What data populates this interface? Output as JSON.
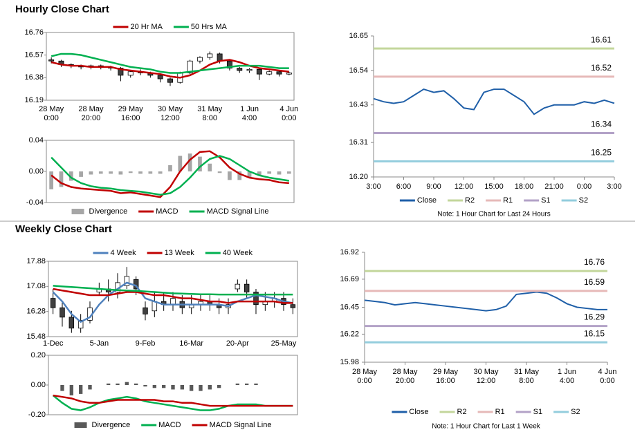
{
  "chart_data": [
    {
      "type": "candlestick",
      "title": "Hourly Close Chart",
      "categories": [
        "28 May 0:00",
        null,
        null,
        null,
        "28 May 20:00",
        null,
        null,
        null,
        "29 May 16:00",
        null,
        null,
        null,
        "30 May 12:00",
        null,
        null,
        null,
        "31 May 8:00",
        null,
        null,
        null,
        "1 Jun 4:00",
        null,
        null,
        null,
        "4 Jun 0:00"
      ],
      "open": [
        16.53,
        16.52,
        16.49,
        16.48,
        16.47,
        16.48,
        16.47,
        16.46,
        16.4,
        16.43,
        16.42,
        16.4,
        16.37,
        16.34,
        16.42,
        16.52,
        16.55,
        16.58,
        16.52,
        16.46,
        16.44,
        16.45,
        16.41,
        16.43,
        16.41
      ],
      "high": [
        16.55,
        16.53,
        16.5,
        16.49,
        16.49,
        16.49,
        16.48,
        16.47,
        16.44,
        16.45,
        16.43,
        16.41,
        16.38,
        16.43,
        16.53,
        16.56,
        16.6,
        16.59,
        16.53,
        16.47,
        16.46,
        16.46,
        16.44,
        16.44,
        16.43
      ],
      "low": [
        16.5,
        16.47,
        16.46,
        16.45,
        16.45,
        16.45,
        16.44,
        16.35,
        16.38,
        16.4,
        16.38,
        16.34,
        16.31,
        16.33,
        16.41,
        16.5,
        16.53,
        16.5,
        16.44,
        16.42,
        16.42,
        16.36,
        16.4,
        16.39,
        16.4
      ],
      "close": [
        16.52,
        16.49,
        16.48,
        16.47,
        16.48,
        16.47,
        16.46,
        16.4,
        16.43,
        16.42,
        16.4,
        16.37,
        16.34,
        16.42,
        16.52,
        16.55,
        16.58,
        16.52,
        16.46,
        16.44,
        16.45,
        16.41,
        16.43,
        16.41,
        16.42
      ],
      "candle_colors": {
        "up": "#ffffff",
        "down": "#404040",
        "edge": "#000000"
      },
      "series": [
        {
          "name": "20 Hr MA",
          "color": "#c00000",
          "values": [
            16.51,
            16.49,
            16.48,
            16.48,
            16.47,
            16.47,
            16.47,
            16.45,
            16.44,
            16.43,
            16.42,
            16.41,
            16.39,
            16.38,
            16.4,
            16.44,
            16.49,
            16.52,
            16.53,
            16.51,
            16.48,
            16.46,
            16.45,
            16.44,
            16.43
          ]
        },
        {
          "name": "50 Hrs MA",
          "color": "#00b050",
          "values": [
            16.56,
            16.58,
            16.58,
            16.57,
            16.55,
            16.53,
            16.51,
            16.49,
            16.47,
            16.46,
            16.45,
            16.43,
            16.42,
            16.42,
            16.43,
            16.44,
            16.45,
            16.46,
            16.47,
            16.48,
            16.48,
            16.48,
            16.47,
            16.46,
            16.46
          ]
        }
      ],
      "ylim": [
        16.19,
        16.76
      ],
      "yticks": [
        16.19,
        16.38,
        16.57,
        16.76
      ]
    },
    {
      "type": "macd",
      "series": [
        {
          "name": "Divergence",
          "kind": "bar",
          "color": "#a6a6a6",
          "values": [
            -0.023,
            -0.02,
            -0.012,
            -0.007,
            -0.004,
            -0.003,
            -0.003,
            -0.004,
            -0.002,
            -0.003,
            -0.003,
            -0.003,
            0.008,
            0.02,
            0.023,
            0.019,
            0.01,
            -0.002,
            -0.011,
            -0.011,
            -0.008,
            -0.005,
            -0.003,
            -0.004,
            -0.003
          ]
        },
        {
          "name": "MACD",
          "kind": "line",
          "color": "#c00000",
          "values": [
            -0.005,
            -0.015,
            -0.02,
            -0.022,
            -0.023,
            -0.024,
            -0.025,
            -0.028,
            -0.027,
            -0.029,
            -0.031,
            -0.033,
            -0.02,
            0.0,
            0.015,
            0.025,
            0.026,
            0.018,
            0.005,
            -0.003,
            -0.008,
            -0.01,
            -0.011,
            -0.014,
            -0.015
          ]
        },
        {
          "name": "MACD Signal Line",
          "kind": "line",
          "color": "#00b050",
          "values": [
            0.018,
            0.005,
            -0.008,
            -0.015,
            -0.019,
            -0.021,
            -0.022,
            -0.024,
            -0.025,
            -0.026,
            -0.028,
            -0.03,
            -0.028,
            -0.02,
            -0.008,
            0.006,
            0.016,
            0.02,
            0.016,
            0.008,
            0.0,
            -0.005,
            -0.008,
            -0.01,
            -0.012
          ]
        }
      ],
      "ylim": [
        -0.04,
        0.04
      ],
      "yticks": [
        {
          "value": -0.04,
          "label": "-0.04"
        },
        {
          "value": 0,
          "label": "0.00"
        },
        {
          "value": 0.04,
          "label": "0.04"
        }
      ]
    },
    {
      "type": "pivot",
      "categories": [
        "3:00",
        null,
        null,
        "6:00",
        null,
        null,
        "9:00",
        null,
        null,
        "12:00",
        null,
        null,
        "15:00",
        null,
        null,
        "18:00",
        null,
        null,
        "21:00",
        null,
        null,
        "0:00",
        null,
        null,
        "3:00"
      ],
      "series": [
        {
          "name": "Close",
          "color": "#1f5fa8",
          "values": [
            16.45,
            16.44,
            16.435,
            16.44,
            16.46,
            16.48,
            16.47,
            16.475,
            16.45,
            16.42,
            16.415,
            16.47,
            16.48,
            16.48,
            16.46,
            16.44,
            16.4,
            16.42,
            16.43,
            16.43,
            16.43,
            16.44,
            16.435,
            16.445,
            16.435
          ]
        },
        {
          "name": "R2",
          "color": "#c3d69b",
          "level": 16.61
        },
        {
          "name": "R1",
          "color": "#e6b9b8",
          "level": 16.52
        },
        {
          "name": "S1",
          "color": "#b3a2c7",
          "level": 16.34
        },
        {
          "name": "S2",
          "color": "#93cddd",
          "level": 16.25
        }
      ],
      "note": "Note: 1 Hour Chart for Last 24 Hours",
      "ylim": [
        16.2,
        16.65
      ],
      "yticks": [
        {
          "value": 16.2,
          "label": "16.20"
        },
        16.31,
        16.43,
        16.54,
        16.65
      ]
    },
    {
      "type": "candlestick",
      "title": "Weekly Close Chart",
      "categories": [
        "1-Dec",
        null,
        null,
        null,
        null,
        "5-Jan",
        null,
        null,
        null,
        null,
        "9-Feb",
        null,
        null,
        null,
        null,
        "16-Mar",
        null,
        null,
        null,
        null,
        "20-Apr",
        null,
        null,
        null,
        null,
        "25-May",
        null
      ],
      "open": [
        16.7,
        16.4,
        16.1,
        15.75,
        16.0,
        16.9,
        17.0,
        16.9,
        17.1,
        17.3,
        16.4,
        16.3,
        16.6,
        16.5,
        16.6,
        16.4,
        16.5,
        16.6,
        16.5,
        16.4,
        17.0,
        17.15,
        16.9,
        16.5,
        16.6,
        16.7,
        16.5
      ],
      "high": [
        17.0,
        16.6,
        16.3,
        16.2,
        16.6,
        17.2,
        17.3,
        17.5,
        17.7,
        17.4,
        16.6,
        16.9,
        16.9,
        16.9,
        16.8,
        16.8,
        16.8,
        16.8,
        16.7,
        16.7,
        17.3,
        17.3,
        17.0,
        16.9,
        16.9,
        16.9,
        16.7
      ],
      "low": [
        16.2,
        15.8,
        15.6,
        15.6,
        15.9,
        16.8,
        16.6,
        16.7,
        17.0,
        16.8,
        16.0,
        16.1,
        16.3,
        16.3,
        16.2,
        16.2,
        16.3,
        16.3,
        16.2,
        16.2,
        16.9,
        16.7,
        16.2,
        16.3,
        16.4,
        16.3,
        16.2
      ],
      "close": [
        16.4,
        16.1,
        15.75,
        16.0,
        16.4,
        17.0,
        16.9,
        17.2,
        17.4,
        17.0,
        16.2,
        16.6,
        16.5,
        16.7,
        16.4,
        16.5,
        16.6,
        16.5,
        16.4,
        16.5,
        17.15,
        16.9,
        16.5,
        16.6,
        16.7,
        16.5,
        16.4
      ],
      "candle_colors": {
        "up": "#ffffff",
        "down": "#404040",
        "edge": "#000000"
      },
      "series": [
        {
          "name": "4 Week",
          "color": "#4f81bd",
          "values": [
            16.9,
            16.6,
            16.2,
            15.95,
            16.1,
            16.5,
            16.8,
            17.0,
            17.2,
            17.1,
            16.7,
            16.6,
            16.5,
            16.5,
            16.5,
            16.5,
            16.5,
            16.5,
            16.5,
            16.45,
            16.6,
            16.7,
            16.8,
            16.75,
            16.7,
            16.6,
            16.55
          ]
        },
        {
          "name": "13 Week",
          "color": "#c00000",
          "values": [
            17.0,
            16.95,
            16.9,
            16.85,
            16.8,
            16.8,
            16.8,
            16.85,
            16.9,
            16.9,
            16.85,
            16.8,
            16.8,
            16.75,
            16.7,
            16.7,
            16.65,
            16.6,
            16.6,
            16.55,
            16.6,
            16.6,
            16.6,
            16.6,
            16.6,
            16.55,
            16.55
          ]
        },
        {
          "name": "40 Week",
          "color": "#00b050",
          "values": [
            17.1,
            17.08,
            17.06,
            17.04,
            17.02,
            17.0,
            16.98,
            16.96,
            16.95,
            16.94,
            16.92,
            16.9,
            16.88,
            16.86,
            16.85,
            16.84,
            16.83,
            16.83,
            16.82,
            16.82,
            16.82,
            16.82,
            16.82,
            16.82,
            16.82,
            16.82,
            16.82
          ]
        }
      ],
      "ylim": [
        15.48,
        17.88
      ],
      "yticks": [
        15.48,
        16.28,
        17.08,
        17.88
      ]
    },
    {
      "type": "macd",
      "series": [
        {
          "name": "Divergence",
          "kind": "bar",
          "color": "#595959",
          "values": [
            0.0,
            -0.04,
            -0.07,
            -0.06,
            -0.03,
            0.0,
            0.01,
            0.01,
            0.02,
            0.01,
            -0.01,
            -0.02,
            -0.02,
            -0.03,
            -0.03,
            -0.04,
            -0.04,
            -0.03,
            -0.02,
            0.0,
            0.01,
            0.01,
            0.01,
            0.0,
            0.0,
            0.0,
            0.0
          ]
        },
        {
          "name": "MACD",
          "kind": "line",
          "color": "#00b050",
          "values": [
            -0.07,
            -0.12,
            -0.16,
            -0.17,
            -0.15,
            -0.12,
            -0.1,
            -0.09,
            -0.08,
            -0.09,
            -0.11,
            -0.12,
            -0.13,
            -0.14,
            -0.15,
            -0.16,
            -0.17,
            -0.17,
            -0.16,
            -0.14,
            -0.13,
            -0.13,
            -0.13,
            -0.14,
            -0.14,
            -0.14,
            -0.14
          ]
        },
        {
          "name": "MACD Signal Line",
          "kind": "line",
          "color": "#c00000",
          "values": [
            -0.07,
            -0.08,
            -0.09,
            -0.11,
            -0.12,
            -0.12,
            -0.11,
            -0.1,
            -0.1,
            -0.1,
            -0.1,
            -0.1,
            -0.11,
            -0.11,
            -0.12,
            -0.12,
            -0.13,
            -0.14,
            -0.14,
            -0.14,
            -0.14,
            -0.14,
            -0.14,
            -0.14,
            -0.14,
            -0.14,
            -0.14
          ]
        }
      ],
      "ylim": [
        -0.2,
        0.2
      ],
      "yticks": [
        {
          "value": -0.2,
          "label": "-0.20"
        },
        {
          "value": 0,
          "label": "0.00"
        },
        {
          "value": 0.2,
          "label": "0.20"
        }
      ]
    },
    {
      "type": "pivot",
      "categories": [
        "28 May 0:00",
        null,
        null,
        null,
        "28 May 20:00",
        null,
        null,
        null,
        "29 May 16:00",
        null,
        null,
        null,
        "30 May 12:00",
        null,
        null,
        null,
        "31 May 8:00",
        null,
        null,
        null,
        "1 Jun 4:00",
        null,
        null,
        null,
        "4 Jun 0:00"
      ],
      "series": [
        {
          "name": "Close",
          "color": "#1f5fa8",
          "values": [
            16.51,
            16.5,
            16.49,
            16.47,
            16.48,
            16.49,
            16.48,
            16.47,
            16.46,
            16.45,
            16.44,
            16.43,
            16.42,
            16.43,
            16.46,
            16.56,
            16.57,
            16.58,
            16.57,
            16.53,
            16.48,
            16.45,
            16.44,
            16.43,
            16.43
          ]
        },
        {
          "name": "R2",
          "color": "#c3d69b",
          "level": 16.76
        },
        {
          "name": "R1",
          "color": "#e6b9b8",
          "level": 16.59
        },
        {
          "name": "S1",
          "color": "#b3a2c7",
          "level": 16.29
        },
        {
          "name": "S2",
          "color": "#93cddd",
          "level": 16.15
        }
      ],
      "note": "Note: 1 Hour Chart for Last 1 Week",
      "ylim": [
        15.98,
        16.92
      ],
      "yticks": [
        15.98,
        16.22,
        16.45,
        16.69,
        16.92
      ]
    }
  ]
}
